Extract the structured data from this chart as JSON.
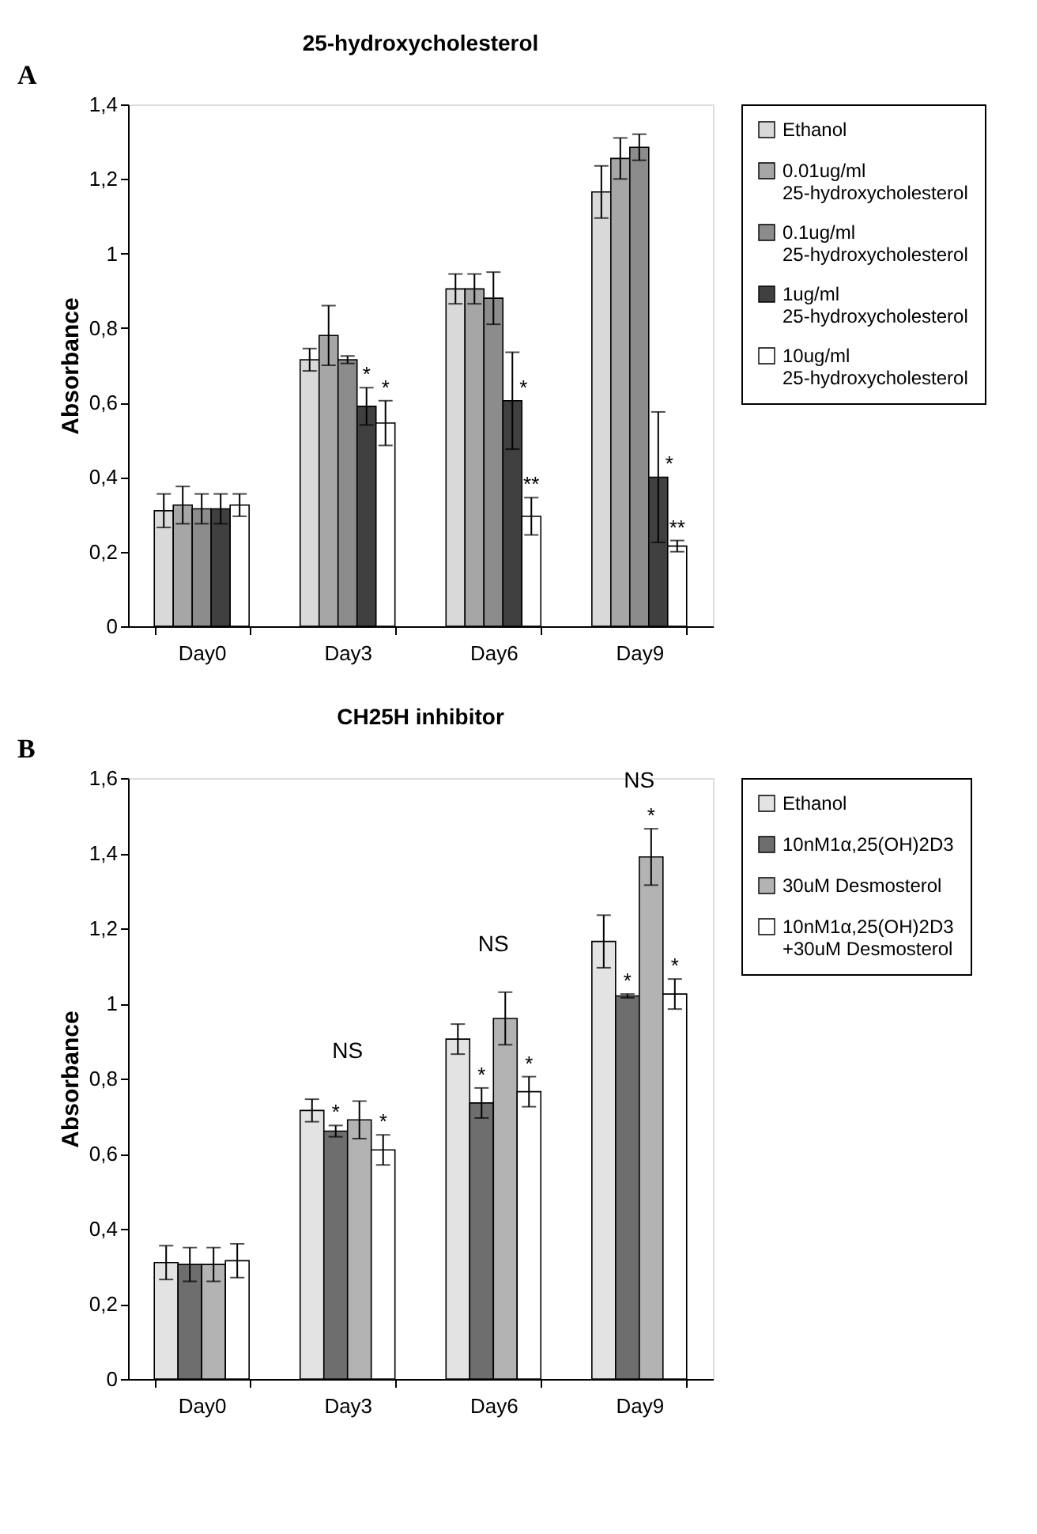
{
  "chart_data": [
    {
      "type": "bar",
      "title": "25-hydroxycholesterol",
      "ylabel": "Absorbance",
      "categories": [
        "Day0",
        "Day3",
        "Day6",
        "Day9"
      ],
      "ylim": [
        0,
        1.4
      ],
      "yticks": [
        0,
        {
          "value": 0.2,
          "label": "0,2"
        },
        {
          "value": 0.4,
          "label": "0,4"
        },
        {
          "value": 0.6,
          "label": "0,6"
        },
        {
          "value": 0.8,
          "label": "0,8"
        },
        1,
        {
          "value": 1.2,
          "label": "1,2"
        },
        {
          "value": 1.4,
          "label": "1,4"
        }
      ],
      "grid": false,
      "legend": "right",
      "annotations": [
        "A"
      ],
      "series": [
        {
          "name": "Ethanol",
          "color": "#d9d9d9",
          "values": [
            0.31,
            0.715,
            0.905,
            1.165
          ],
          "errors": [
            0.045,
            0.03,
            0.04,
            0.07
          ]
        },
        {
          "name": "0.01ug/ml 25-hydroxycholesterol",
          "color": "#a6a6a6",
          "values": [
            0.325,
            0.78,
            0.905,
            1.255
          ],
          "errors": [
            0.05,
            0.08,
            0.04,
            0.055
          ]
        },
        {
          "name": "0.1ug/ml 25-hydroxycholesterol",
          "color": "#8c8c8c",
          "values": [
            0.315,
            0.715,
            0.88,
            1.285
          ],
          "errors": [
            0.04,
            0.01,
            0.07,
            0.035
          ]
        },
        {
          "name": "1ug/ml 25-hydroxycholesterol",
          "color": "#404040",
          "values": [
            0.315,
            0.59,
            0.605,
            0.4
          ],
          "errors": [
            0.04,
            0.05,
            0.13,
            0.175
          ],
          "value_labels": [
            null,
            "*",
            "*",
            "*"
          ]
        },
        {
          "name": "10ug/ml 25-hydroxycholesterol",
          "color": "#ffffff",
          "values": [
            0.325,
            0.545,
            0.295,
            0.215
          ],
          "errors": [
            0.03,
            0.06,
            0.05,
            0.015
          ],
          "value_labels": [
            null,
            "*",
            "**",
            "**"
          ]
        }
      ]
    },
    {
      "type": "bar",
      "title": "CH25H inhibitor",
      "ylabel": "Absorbance",
      "categories": [
        "Day0",
        "Day3",
        "Day6",
        "Day9"
      ],
      "ylim": [
        0,
        1.6
      ],
      "yticks": [
        0,
        {
          "value": 0.2,
          "label": "0,2"
        },
        {
          "value": 0.4,
          "label": "0,4"
        },
        {
          "value": 0.6,
          "label": "0,6"
        },
        {
          "value": 0.8,
          "label": "0,8"
        },
        1,
        {
          "value": 1.2,
          "label": "1,2"
        },
        {
          "value": 1.4,
          "label": "1,4"
        },
        {
          "value": 1.6,
          "label": "1,6"
        }
      ],
      "grid": false,
      "legend": "right",
      "annotations": [
        "B",
        "NS",
        "NS",
        "NS"
      ],
      "series": [
        {
          "name": "Ethanol",
          "color": "#e3e3e3",
          "values": [
            0.31,
            0.715,
            0.905,
            1.165
          ],
          "errors": [
            0.045,
            0.03,
            0.04,
            0.07
          ]
        },
        {
          "name": "10nM1α,25(OH)2D3",
          "color": "#6e6e6e",
          "values": [
            0.305,
            0.66,
            0.735,
            1.02
          ],
          "errors": [
            0.045,
            0.015,
            0.04,
            0.005
          ],
          "value_labels": [
            null,
            "*",
            "*",
            "*"
          ]
        },
        {
          "name": "30uM Desmosterol",
          "color": "#b3b3b3",
          "values": [
            0.305,
            0.69,
            0.96,
            1.39
          ],
          "errors": [
            0.045,
            0.05,
            0.07,
            0.075
          ],
          "value_labels": [
            null,
            null,
            null,
            "*"
          ]
        },
        {
          "name": "10nM1α,25(OH)2D3 +30uM Desmosterol",
          "color": "#ffffff",
          "values": [
            0.315,
            0.61,
            0.765,
            1.025
          ],
          "errors": [
            0.045,
            0.04,
            0.04,
            0.04
          ],
          "value_labels": [
            null,
            "*",
            "*",
            "*"
          ]
        }
      ]
    }
  ]
}
